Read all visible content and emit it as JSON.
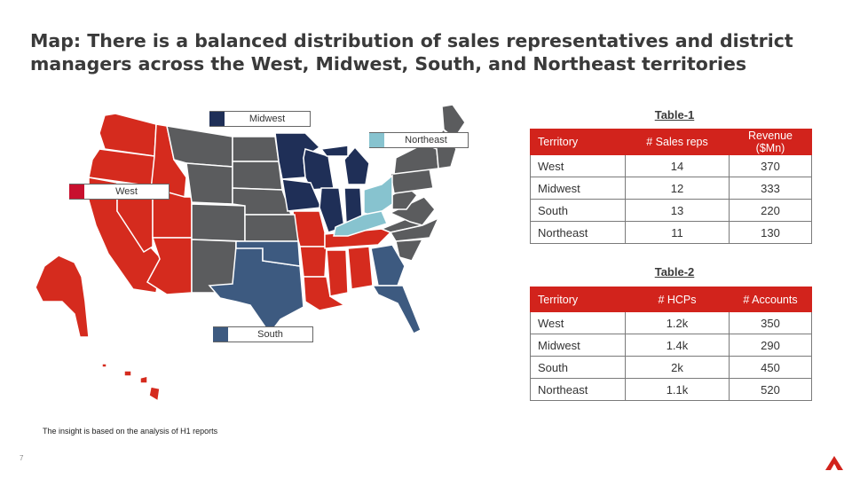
{
  "title": "Map: There is a balanced distribution of sales representatives and district managers across the West, Midwest, South, and Northeast territories",
  "colors": {
    "west": "#d52b1e",
    "midwest": "#1f2f57",
    "south": "#3d5a80",
    "northeast": "#87c3cf",
    "other": "#5b5c5e",
    "accent": "#d2231c"
  },
  "map_legend": [
    {
      "key": "midwest",
      "label": "Midwest"
    },
    {
      "key": "northeast",
      "label": "Northeast"
    },
    {
      "key": "west",
      "label": "West"
    },
    {
      "key": "south",
      "label": "South"
    }
  ],
  "table1": {
    "caption": "Table-1",
    "headers": [
      "Territory",
      "# Sales reps",
      "Revenue ($Mn)"
    ],
    "rows": [
      [
        "West",
        "14",
        "370"
      ],
      [
        "Midwest",
        "12",
        "333"
      ],
      [
        "South",
        "13",
        "220"
      ],
      [
        "Northeast",
        "11",
        "130"
      ]
    ]
  },
  "table2": {
    "caption": "Table-2",
    "headers": [
      "Territory",
      "# HCPs",
      "# Accounts"
    ],
    "rows": [
      [
        "West",
        "1.2k",
        "350"
      ],
      [
        "Midwest",
        "1.4k",
        "290"
      ],
      [
        "South",
        "2k",
        "450"
      ],
      [
        "Northeast",
        "1.1k",
        "520"
      ]
    ]
  },
  "footnote": "The insight is based on the analysis of H1 reports",
  "page_number": "7",
  "logo_icon": "brand-logo-icon"
}
